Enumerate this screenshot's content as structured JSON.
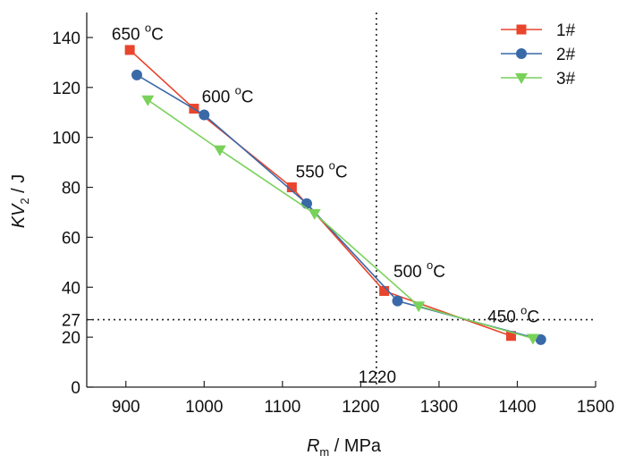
{
  "chart_data": {
    "type": "line",
    "xlabel": {
      "main": "R",
      "sub": "m",
      "unit": " / MPa"
    },
    "ylabel": {
      "main": "KV",
      "sub": "2",
      "unit": " / J"
    },
    "xlim": [
      850,
      1500
    ],
    "ylim": [
      0,
      150
    ],
    "x_ticks": [
      900,
      1000,
      1100,
      1200,
      1300,
      1400,
      1500
    ],
    "y_ticks": [
      0,
      20,
      27,
      40,
      60,
      80,
      100,
      120,
      140
    ],
    "grid": false,
    "legend": "top-right",
    "series": [
      {
        "name": "1#",
        "color": "#e8452c",
        "marker": "square",
        "x": [
          905,
          987,
          1112,
          1230,
          1392
        ],
        "y": [
          135,
          111.5,
          80,
          38.5,
          20.5
        ]
      },
      {
        "name": "2#",
        "color": "#3a69a8",
        "marker": "circle",
        "x": [
          914,
          1000,
          1131,
          1247,
          1430
        ],
        "y": [
          125,
          109,
          73.5,
          34.5,
          19
        ]
      },
      {
        "name": "3#",
        "color": "#79d15a",
        "marker": "triangle-down",
        "x": [
          928,
          1020,
          1141,
          1274,
          1420
        ],
        "y": [
          115,
          95,
          69.5,
          32.5,
          19.5
        ]
      }
    ],
    "reference_lines": [
      {
        "axis": "x",
        "value": 1220,
        "label": "1220"
      },
      {
        "axis": "y",
        "value": 27,
        "label": "27"
      }
    ],
    "annotations": [
      {
        "text": "650 °C",
        "x": 915,
        "y": 139
      },
      {
        "text": "600 °C",
        "x": 1030,
        "y": 114
      },
      {
        "text": "550 °C",
        "x": 1150,
        "y": 84
      },
      {
        "text": "500 °C",
        "x": 1275,
        "y": 44
      },
      {
        "text": "450 °C",
        "x": 1395,
        "y": 26
      }
    ]
  }
}
